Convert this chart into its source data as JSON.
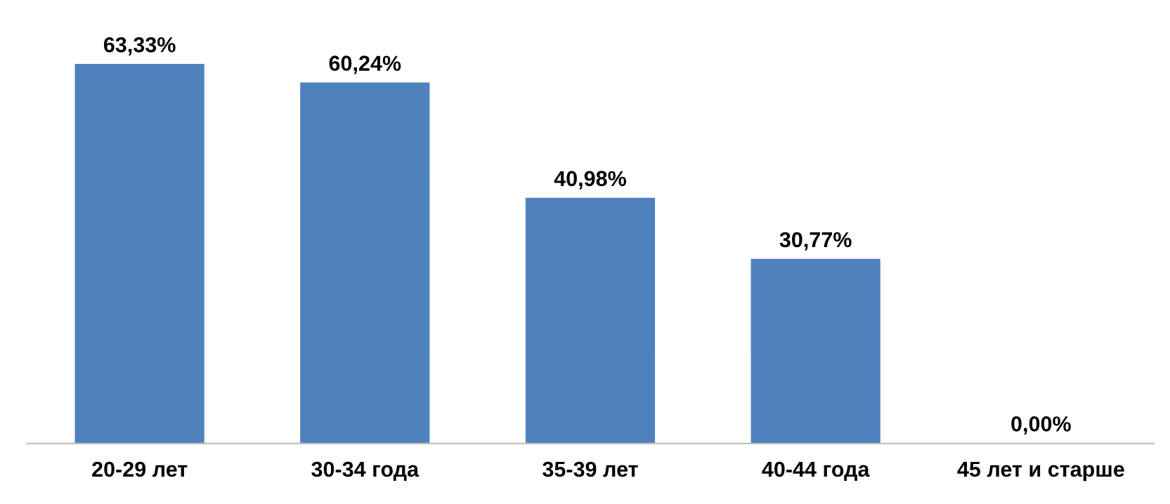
{
  "chart_data": {
    "type": "bar",
    "categories": [
      "20-29 лет",
      "30-34 года",
      "35-39 лет",
      "40-44 года",
      "45 лет и старше"
    ],
    "values": [
      63.33,
      60.24,
      40.98,
      30.77,
      0.0
    ],
    "value_labels": [
      "63,33%",
      "60,24%",
      "40,98%",
      "30,77%",
      "0,00%"
    ],
    "color": "#4f81bd",
    "grid": false,
    "legend": false
  }
}
